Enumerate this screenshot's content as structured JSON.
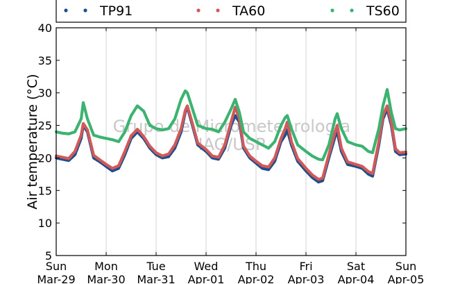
{
  "chart_data": {
    "type": "scatter",
    "title": "",
    "xlabel": "",
    "ylabel": "Air temperature (°C)",
    "ylim": [
      5,
      40
    ],
    "yticks": [
      5,
      10,
      15,
      20,
      25,
      30,
      35,
      40
    ],
    "xlim": [
      "2015-03-29 00:00",
      "2015-04-05 00:00"
    ],
    "xticks": [
      {
        "day": "Sun",
        "date": "Mar-29"
      },
      {
        "day": "Mon",
        "date": "Mar-30"
      },
      {
        "day": "Tue",
        "date": "Mar-31"
      },
      {
        "day": "Wed",
        "date": "Apr-01"
      },
      {
        "day": "Thu",
        "date": "Apr-02"
      },
      {
        "day": "Fri",
        "date": "Apr-03"
      },
      {
        "day": "Sat",
        "date": "Apr-04"
      },
      {
        "day": "Sun",
        "date": "Apr-05"
      }
    ],
    "grid": "vertical",
    "legend_position": "top",
    "watermark": [
      "Grupo de Micrometeorologia",
      "IAG/USP"
    ],
    "series": [
      {
        "name": "TP91",
        "color": "#1f4e8c",
        "points": [
          [
            "2015-03-29 00:00",
            20.0
          ],
          [
            "2015-03-29 03:00",
            19.8
          ],
          [
            "2015-03-29 06:00",
            19.6
          ],
          [
            "2015-03-29 09:00",
            20.5
          ],
          [
            "2015-03-29 12:00",
            23.0
          ],
          [
            "2015-03-29 13:00",
            25.0
          ],
          [
            "2015-03-29 15:00",
            24.0
          ],
          [
            "2015-03-29 18:00",
            20.0
          ],
          [
            "2015-03-29 21:00",
            19.4
          ],
          [
            "2015-03-30 00:00",
            18.7
          ],
          [
            "2015-03-30 03:00",
            18.0
          ],
          [
            "2015-03-30 06:00",
            18.4
          ],
          [
            "2015-03-30 09:00",
            20.5
          ],
          [
            "2015-03-30 12:00",
            23.0
          ],
          [
            "2015-03-30 15:00",
            24.0
          ],
          [
            "2015-03-30 18:00",
            23.0
          ],
          [
            "2015-03-30 21:00",
            21.5
          ],
          [
            "2015-03-31 00:00",
            20.5
          ],
          [
            "2015-03-31 03:00",
            20.0
          ],
          [
            "2015-03-31 06:00",
            20.2
          ],
          [
            "2015-03-31 09:00",
            21.5
          ],
          [
            "2015-03-31 12:00",
            24.0
          ],
          [
            "2015-03-31 14:00",
            27.0
          ],
          [
            "2015-03-31 15:00",
            27.8
          ],
          [
            "2015-03-31 17:00",
            25.5
          ],
          [
            "2015-03-31 20:00",
            22.0
          ],
          [
            "2015-04-01 00:00",
            21.0
          ],
          [
            "2015-04-01 03:00",
            20.0
          ],
          [
            "2015-04-01 06:00",
            19.8
          ],
          [
            "2015-04-01 09:00",
            21.5
          ],
          [
            "2015-04-01 12:00",
            25.0
          ],
          [
            "2015-04-01 14:00",
            26.5
          ],
          [
            "2015-04-01 16:00",
            25.5
          ],
          [
            "2015-04-01 18:00",
            21.5
          ],
          [
            "2015-04-01 21:00",
            20.0
          ],
          [
            "2015-04-02 00:00",
            19.2
          ],
          [
            "2015-04-02 03:00",
            18.4
          ],
          [
            "2015-04-02 06:00",
            18.2
          ],
          [
            "2015-04-02 09:00",
            19.5
          ],
          [
            "2015-04-02 12:00",
            22.5
          ],
          [
            "2015-04-02 14:00",
            23.5
          ],
          [
            "2015-04-02 15:00",
            24.3
          ],
          [
            "2015-04-02 17:00",
            22.0
          ],
          [
            "2015-04-02 20:00",
            19.5
          ],
          [
            "2015-04-03 00:00",
            18.0
          ],
          [
            "2015-04-03 03:00",
            17.0
          ],
          [
            "2015-04-03 06:00",
            16.3
          ],
          [
            "2015-04-03 08:00",
            16.5
          ],
          [
            "2015-04-03 11:00",
            20.0
          ],
          [
            "2015-04-03 14:00",
            23.3
          ],
          [
            "2015-04-03 15:00",
            24.0
          ],
          [
            "2015-04-03 17:00",
            21.0
          ],
          [
            "2015-04-03 20:00",
            19.0
          ],
          [
            "2015-04-04 00:00",
            18.7
          ],
          [
            "2015-04-04 03:00",
            18.4
          ],
          [
            "2015-04-04 06:00",
            17.5
          ],
          [
            "2015-04-04 08:00",
            17.2
          ],
          [
            "2015-04-04 11:00",
            22.0
          ],
          [
            "2015-04-04 13:00",
            26.0
          ],
          [
            "2015-04-04 15:00",
            27.5
          ],
          [
            "2015-04-04 17:00",
            25.0
          ],
          [
            "2015-04-04 19:00",
            21.0
          ],
          [
            "2015-04-04 21:00",
            20.5
          ],
          [
            "2015-04-05 00:00",
            20.6
          ]
        ]
      },
      {
        "name": "TA60",
        "color": "#d05a5a",
        "points": [
          [
            "2015-03-29 00:00",
            20.3
          ],
          [
            "2015-03-29 03:00",
            20.1
          ],
          [
            "2015-03-29 06:00",
            19.9
          ],
          [
            "2015-03-29 09:00",
            21.0
          ],
          [
            "2015-03-29 12:00",
            23.5
          ],
          [
            "2015-03-29 13:00",
            25.3
          ],
          [
            "2015-03-29 15:00",
            24.3
          ],
          [
            "2015-03-29 18:00",
            20.4
          ],
          [
            "2015-03-29 21:00",
            19.7
          ],
          [
            "2015-03-30 00:00",
            19.0
          ],
          [
            "2015-03-30 03:00",
            18.4
          ],
          [
            "2015-03-30 06:00",
            18.8
          ],
          [
            "2015-03-30 09:00",
            21.0
          ],
          [
            "2015-03-30 12:00",
            23.4
          ],
          [
            "2015-03-30 15:00",
            24.4
          ],
          [
            "2015-03-30 18:00",
            23.3
          ],
          [
            "2015-03-30 21:00",
            21.8
          ],
          [
            "2015-03-31 00:00",
            20.8
          ],
          [
            "2015-03-31 03:00",
            20.3
          ],
          [
            "2015-03-31 06:00",
            20.6
          ],
          [
            "2015-03-31 09:00",
            22.0
          ],
          [
            "2015-03-31 12:00",
            24.5
          ],
          [
            "2015-03-31 14:00",
            27.3
          ],
          [
            "2015-03-31 15:00",
            28.0
          ],
          [
            "2015-03-31 17:00",
            25.8
          ],
          [
            "2015-03-31 20:00",
            22.3
          ],
          [
            "2015-04-01 00:00",
            21.3
          ],
          [
            "2015-04-01 03:00",
            20.3
          ],
          [
            "2015-04-01 06:00",
            20.1
          ],
          [
            "2015-04-01 09:00",
            22.0
          ],
          [
            "2015-04-01 12:00",
            25.5
          ],
          [
            "2015-04-01 14:00",
            27.8
          ],
          [
            "2015-04-01 16:00",
            26.0
          ],
          [
            "2015-04-01 18:00",
            21.8
          ],
          [
            "2015-04-01 21:00",
            20.3
          ],
          [
            "2015-04-02 00:00",
            19.5
          ],
          [
            "2015-04-02 03:00",
            18.8
          ],
          [
            "2015-04-02 06:00",
            18.6
          ],
          [
            "2015-04-02 09:00",
            20.0
          ],
          [
            "2015-04-02 12:00",
            23.0
          ],
          [
            "2015-04-02 14:00",
            24.5
          ],
          [
            "2015-04-02 15:00",
            25.5
          ],
          [
            "2015-04-02 17:00",
            22.5
          ],
          [
            "2015-04-02 20:00",
            19.9
          ],
          [
            "2015-04-03 00:00",
            18.4
          ],
          [
            "2015-04-03 03:00",
            17.4
          ],
          [
            "2015-04-03 06:00",
            16.7
          ],
          [
            "2015-04-03 08:00",
            16.9
          ],
          [
            "2015-04-03 11:00",
            20.5
          ],
          [
            "2015-04-03 14:00",
            24.0
          ],
          [
            "2015-04-03 15:00",
            25.0
          ],
          [
            "2015-04-03 17:00",
            21.5
          ],
          [
            "2015-04-03 20:00",
            19.4
          ],
          [
            "2015-04-04 00:00",
            19.0
          ],
          [
            "2015-04-04 03:00",
            18.7
          ],
          [
            "2015-04-04 06:00",
            17.9
          ],
          [
            "2015-04-04 08:00",
            17.6
          ],
          [
            "2015-04-04 11:00",
            22.5
          ],
          [
            "2015-04-04 13:00",
            26.5
          ],
          [
            "2015-04-04 15:00",
            28.0
          ],
          [
            "2015-04-04 17:00",
            25.5
          ],
          [
            "2015-04-04 19:00",
            21.4
          ],
          [
            "2015-04-04 21:00",
            20.8
          ],
          [
            "2015-04-05 00:00",
            20.9
          ]
        ]
      },
      {
        "name": "TS60",
        "color": "#3cb371",
        "points": [
          [
            "2015-03-29 00:00",
            24.0
          ],
          [
            "2015-03-29 03:00",
            23.8
          ],
          [
            "2015-03-29 06:00",
            23.7
          ],
          [
            "2015-03-29 09:00",
            24.0
          ],
          [
            "2015-03-29 12:00",
            26.0
          ],
          [
            "2015-03-29 13:00",
            28.5
          ],
          [
            "2015-03-29 15:00",
            26.0
          ],
          [
            "2015-03-29 18:00",
            23.5
          ],
          [
            "2015-03-29 21:00",
            23.2
          ],
          [
            "2015-03-30 00:00",
            23.0
          ],
          [
            "2015-03-30 03:00",
            22.8
          ],
          [
            "2015-03-30 06:00",
            22.5
          ],
          [
            "2015-03-30 09:00",
            24.0
          ],
          [
            "2015-03-30 12:00",
            26.5
          ],
          [
            "2015-03-30 15:00",
            28.0
          ],
          [
            "2015-03-30 18:00",
            27.2
          ],
          [
            "2015-03-30 21:00",
            25.0
          ],
          [
            "2015-03-31 00:00",
            24.5
          ],
          [
            "2015-03-31 03:00",
            24.3
          ],
          [
            "2015-03-31 06:00",
            24.5
          ],
          [
            "2015-03-31 09:00",
            26.0
          ],
          [
            "2015-03-31 12:00",
            29.0
          ],
          [
            "2015-03-31 14:00",
            30.3
          ],
          [
            "2015-03-31 15:00",
            30.0
          ],
          [
            "2015-03-31 17:00",
            28.0
          ],
          [
            "2015-03-31 20:00",
            25.0
          ],
          [
            "2015-04-01 00:00",
            24.5
          ],
          [
            "2015-04-01 03:00",
            24.4
          ],
          [
            "2015-04-01 06:00",
            24.0
          ],
          [
            "2015-04-01 09:00",
            25.5
          ],
          [
            "2015-04-01 12:00",
            27.5
          ],
          [
            "2015-04-01 14:00",
            29.0
          ],
          [
            "2015-04-01 16:00",
            27.0
          ],
          [
            "2015-04-01 18:00",
            24.0
          ],
          [
            "2015-04-01 21:00",
            23.0
          ],
          [
            "2015-04-02 00:00",
            22.5
          ],
          [
            "2015-04-02 03:00",
            22.0
          ],
          [
            "2015-04-02 06:00",
            21.5
          ],
          [
            "2015-04-02 09:00",
            22.5
          ],
          [
            "2015-04-02 12:00",
            25.0
          ],
          [
            "2015-04-02 14:00",
            26.2
          ],
          [
            "2015-04-02 15:00",
            26.5
          ],
          [
            "2015-04-02 17:00",
            24.5
          ],
          [
            "2015-04-02 20:00",
            22.0
          ],
          [
            "2015-04-03 00:00",
            21.0
          ],
          [
            "2015-04-03 03:00",
            20.3
          ],
          [
            "2015-04-03 06:00",
            19.8
          ],
          [
            "2015-04-03 08:00",
            19.7
          ],
          [
            "2015-04-03 11:00",
            22.0
          ],
          [
            "2015-04-03 14:00",
            26.0
          ],
          [
            "2015-04-03 15:00",
            26.8
          ],
          [
            "2015-04-03 17:00",
            24.5
          ],
          [
            "2015-04-03 20:00",
            22.5
          ],
          [
            "2015-04-04 00:00",
            22.0
          ],
          [
            "2015-04-04 03:00",
            21.8
          ],
          [
            "2015-04-04 06:00",
            21.0
          ],
          [
            "2015-04-04 08:00",
            20.8
          ],
          [
            "2015-04-04 11:00",
            24.5
          ],
          [
            "2015-04-04 13:00",
            28.0
          ],
          [
            "2015-04-04 15:00",
            30.5
          ],
          [
            "2015-04-04 17:00",
            27.0
          ],
          [
            "2015-04-04 19:00",
            24.5
          ],
          [
            "2015-04-04 21:00",
            24.3
          ],
          [
            "2015-04-05 00:00",
            24.5
          ]
        ]
      }
    ]
  }
}
